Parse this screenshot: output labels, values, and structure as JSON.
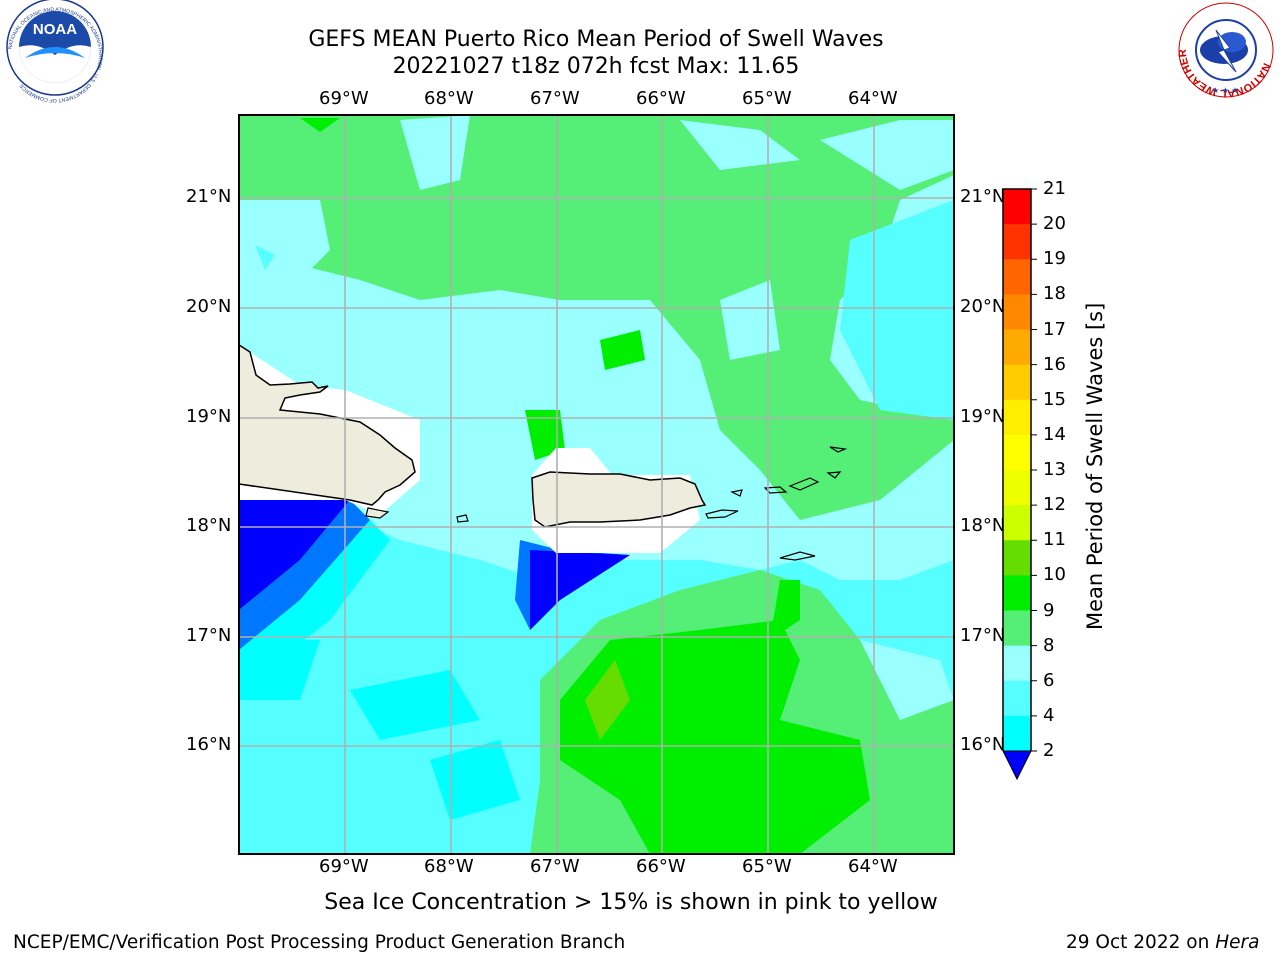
{
  "title": {
    "line1": "GEFS MEAN Puerto Rico Mean Period of Swell Waves",
    "line2": "20221027 t18z 072h fcst   Max: 11.65"
  },
  "axes": {
    "lon_labels": [
      "69°W",
      "68°W",
      "67°W",
      "66°W",
      "65°W",
      "64°W"
    ],
    "lat_labels": [
      "21°N",
      "20°N",
      "19°N",
      "18°N",
      "17°N",
      "16°N"
    ]
  },
  "colorbar": {
    "title": "Mean Period of Swell Waves [s]",
    "ticks": [
      "21",
      "20",
      "19",
      "18",
      "17",
      "16",
      "15",
      "14",
      "13",
      "12",
      "11",
      "10",
      "9",
      "8",
      "6",
      "4",
      "2"
    ],
    "colors": [
      "#ff0000",
      "#ff3300",
      "#ff6600",
      "#ff8800",
      "#ffaa00",
      "#ffcc00",
      "#ffee00",
      "#ffff00",
      "#eeff00",
      "#ccff00",
      "#66dd00",
      "#00ee00",
      "#55ee77",
      "#99ffff",
      "#55ffff",
      "#00ffff",
      "#0077ff",
      "#0000ff"
    ]
  },
  "caption": "Sea Ice Concentration > 15% is shown in pink to yellow",
  "footer": {
    "left": "NCEP/EMC/Verification Post Processing Product Generation Branch",
    "right_prefix": "29 Oct 2022 on ",
    "right_machine": "Hera"
  },
  "logos": {
    "noaa": "NOAA",
    "noaa_ring": "NATIONAL OCEANIC AND ATMOSPHERIC ADMINISTRATION · U.S. DEPARTMENT OF COMMERCE",
    "nws_ring": "NATIONAL WEATHER SERVICE"
  }
}
